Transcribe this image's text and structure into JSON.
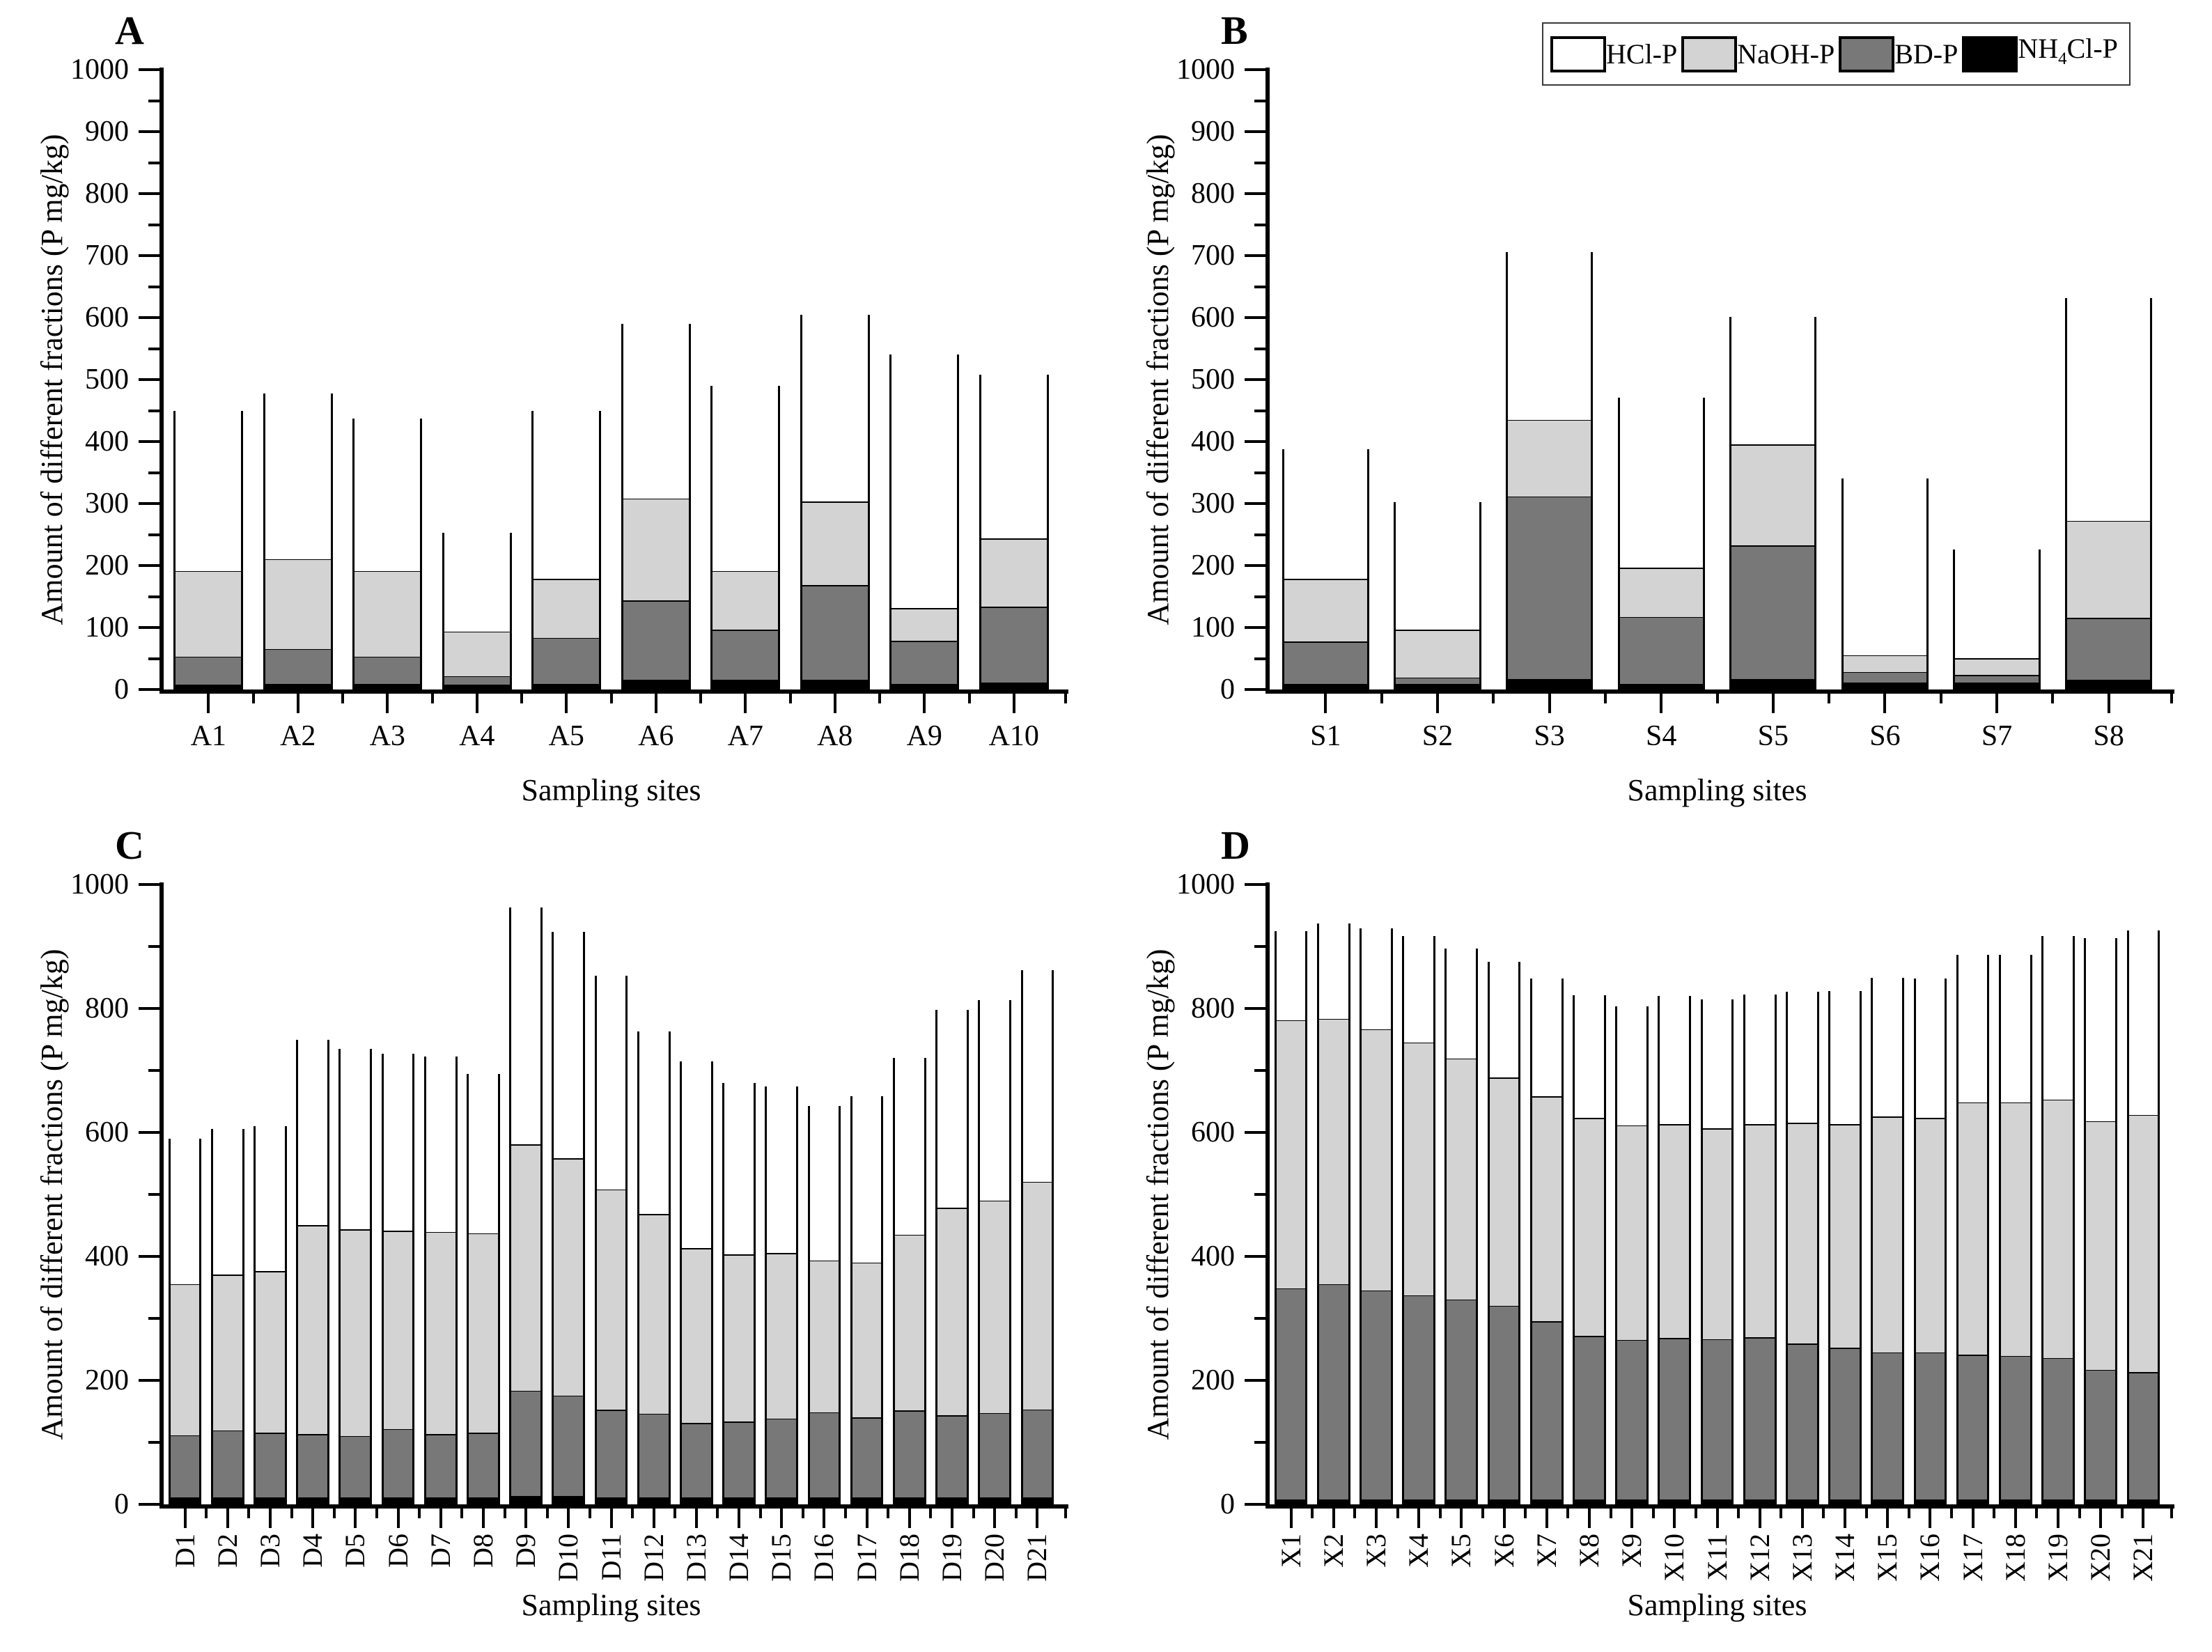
{
  "figure": {
    "ylabel": "Amount of different fractions (P mg/kg)",
    "xlabel": "Sampling sites",
    "ylim": [
      0,
      1000
    ]
  },
  "legend": {
    "items": [
      {
        "name": "hcl-p",
        "pre": "HCl-P",
        "sub": "",
        "post": "",
        "color": "#ffffff"
      },
      {
        "name": "naoh-p",
        "pre": "NaOH-P",
        "sub": "",
        "post": "",
        "color": "#d3d3d3"
      },
      {
        "name": "bd-p",
        "pre": "BD-P",
        "sub": "",
        "post": "",
        "color": "#787878"
      },
      {
        "name": "nh4cl-p",
        "pre": "NH",
        "sub": "4",
        "post": "Cl-P",
        "color": "#000000"
      }
    ]
  },
  "series_colors": {
    "NH4Cl-P": "#000000",
    "BD-P": "#787878",
    "NaOH-P": "#d3d3d3",
    "HCl-P": "#ffffff"
  },
  "chart_data": [
    {
      "type": "bar",
      "stacked": true,
      "title": "A",
      "xlabel": "Sampling sites",
      "ylabel": "Amount of different fractions (P mg/kg)",
      "ylim": [
        0,
        1000
      ],
      "ytick_label_step": 100,
      "ytick_minor_step": 50,
      "rotate_xticks": false,
      "grid": false,
      "categories": [
        "A1",
        "A2",
        "A3",
        "A4",
        "A5",
        "A6",
        "A7",
        "A8",
        "A9",
        "A10"
      ],
      "series": [
        {
          "name": "NH4Cl-P",
          "values": [
            5,
            6,
            6,
            4,
            6,
            12,
            12,
            12,
            6,
            8
          ]
        },
        {
          "name": "BD-P",
          "values": [
            45,
            56,
            44,
            14,
            74,
            128,
            81,
            153,
            69,
            122
          ]
        },
        {
          "name": "NaOH-P",
          "values": [
            138,
            145,
            138,
            72,
            95,
            165,
            95,
            135,
            53,
            110
          ]
        },
        {
          "name": "HCl-P",
          "values": [
            262,
            270,
            249,
            163,
            275,
            285,
            302,
            305,
            412,
            268
          ]
        }
      ],
      "totals": [
        450,
        477,
        437,
        253,
        450,
        590,
        490,
        605,
        540,
        508
      ]
    },
    {
      "type": "bar",
      "stacked": true,
      "title": "B",
      "xlabel": "Sampling sites",
      "ylabel": "Amount of different fractions (P mg/kg)",
      "ylim": [
        0,
        1000
      ],
      "ytick_label_step": 100,
      "ytick_minor_step": 50,
      "rotate_xticks": false,
      "grid": false,
      "categories": [
        "S1",
        "S2",
        "S3",
        "S4",
        "S5",
        "S6",
        "S7",
        "S8"
      ],
      "series": [
        {
          "name": "NH4Cl-P",
          "values": [
            6,
            6,
            14,
            6,
            14,
            8,
            8,
            12
          ]
        },
        {
          "name": "BD-P",
          "values": [
            68,
            10,
            294,
            108,
            215,
            17,
            12,
            100
          ]
        },
        {
          "name": "NaOH-P",
          "values": [
            101,
            77,
            124,
            79,
            163,
            27,
            27,
            157
          ]
        },
        {
          "name": "HCl-P",
          "values": [
            213,
            209,
            274,
            278,
            209,
            288,
            179,
            362
          ]
        }
      ],
      "totals": [
        388,
        302,
        706,
        471,
        601,
        340,
        226,
        631
      ]
    },
    {
      "type": "bar",
      "stacked": true,
      "title": "C",
      "xlabel": "Sampling sites",
      "ylabel": "Amount of different fractions (P mg/kg)",
      "ylim": [
        0,
        1000
      ],
      "ytick_label_step": 200,
      "ytick_minor_step": 100,
      "rotate_xticks": true,
      "grid": false,
      "categories": [
        "D1",
        "D2",
        "D3",
        "D4",
        "D5",
        "D6",
        "D7",
        "D8",
        "D9",
        "D10",
        "D11",
        "D12",
        "D13",
        "D14",
        "D15",
        "D16",
        "D17",
        "D18",
        "D19",
        "D20",
        "D21"
      ],
      "series": [
        {
          "name": "NH4Cl-P",
          "values": [
            8,
            8,
            8,
            8,
            8,
            8,
            8,
            8,
            10,
            10,
            8,
            8,
            8,
            8,
            8,
            8,
            8,
            8,
            8,
            8,
            8
          ]
        },
        {
          "name": "BD-P",
          "values": [
            100,
            108,
            104,
            102,
            99,
            110,
            102,
            104,
            170,
            162,
            141,
            135,
            120,
            122,
            127,
            137,
            129,
            140,
            132,
            136,
            142
          ]
        },
        {
          "name": "NaOH-P",
          "values": [
            244,
            251,
            261,
            337,
            333,
            320,
            326,
            322,
            397,
            383,
            356,
            322,
            282,
            270,
            267,
            245,
            250,
            284,
            335,
            343,
            367
          ]
        },
        {
          "name": "HCl-P",
          "values": [
            238,
            239,
            237,
            303,
            295,
            289,
            287,
            260,
            386,
            369,
            348,
            298,
            305,
            280,
            272,
            253,
            271,
            288,
            323,
            326,
            345
          ]
        }
      ],
      "totals": [
        590,
        606,
        610,
        750,
        735,
        727,
        723,
        694,
        963,
        924,
        853,
        763,
        715,
        680,
        674,
        643,
        658,
        720,
        798,
        813,
        862
      ]
    },
    {
      "type": "bar",
      "stacked": true,
      "title": "D",
      "xlabel": "Sampling sites",
      "ylabel": "Amount of different fractions (P mg/kg)",
      "ylim": [
        0,
        1000
      ],
      "ytick_label_step": 200,
      "ytick_minor_step": 100,
      "rotate_xticks": true,
      "grid": false,
      "categories": [
        "X1",
        "X2",
        "X3",
        "X4",
        "X5",
        "X6",
        "X7",
        "X8",
        "X9",
        "X10",
        "X11",
        "X12",
        "X13",
        "X14",
        "X15",
        "X16",
        "X17",
        "X18",
        "X19",
        "X20",
        "X21"
      ],
      "series": [
        {
          "name": "NH4Cl-P",
          "values": [
            5,
            5,
            5,
            5,
            5,
            5,
            5,
            5,
            5,
            5,
            5,
            5,
            5,
            5,
            5,
            5,
            5,
            5,
            5,
            5,
            5
          ]
        },
        {
          "name": "BD-P",
          "values": [
            340,
            347,
            337,
            329,
            322,
            312,
            287,
            263,
            257,
            260,
            258,
            261,
            251,
            244,
            237,
            237,
            233,
            231,
            228,
            209,
            205
          ]
        },
        {
          "name": "NaOH-P",
          "values": [
            433,
            428,
            421,
            408,
            389,
            368,
            363,
            352,
            346,
            345,
            340,
            344,
            356,
            361,
            380,
            378,
            407,
            409,
            417,
            401,
            415
          ]
        },
        {
          "name": "HCl-P",
          "values": [
            147,
            157,
            166,
            175,
            181,
            190,
            193,
            201,
            195,
            210,
            212,
            213,
            215,
            218,
            227,
            228,
            241,
            242,
            267,
            298,
            301
          ]
        }
      ],
      "totals": [
        925,
        937,
        929,
        917,
        897,
        875,
        848,
        821,
        803,
        820,
        815,
        823,
        827,
        828,
        849,
        848,
        886,
        887,
        917,
        913,
        926
      ]
    }
  ]
}
